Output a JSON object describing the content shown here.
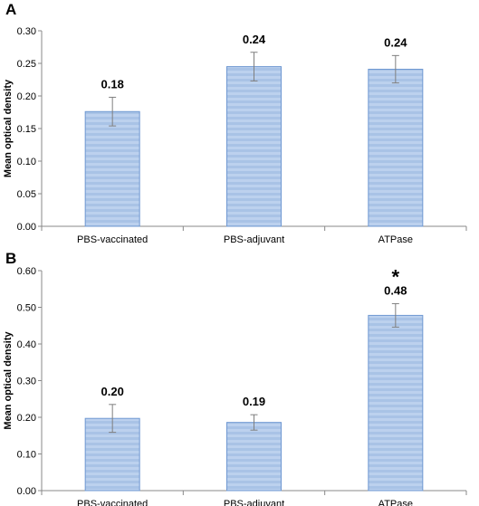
{
  "colors": {
    "bar_fill": "#a9c3e6",
    "bar_stripe": "#8fb0dc",
    "bar_edge": "#6f98d2",
    "axis": "#888888",
    "errorbar": "#7f7f7f"
  },
  "chart_data": [
    {
      "type": "bar",
      "panel": "A",
      "ylabel": "Mean optical density",
      "xlabel": "",
      "categories": [
        "PBS-vaccinated",
        "PBS-adjuvant",
        "ATPase"
      ],
      "values": [
        0.176,
        0.245,
        0.241
      ],
      "errors": [
        0.022,
        0.022,
        0.021
      ],
      "data_labels": [
        "0.18",
        "0.24",
        "0.24"
      ],
      "significance": [
        "",
        "",
        ""
      ],
      "ylim": [
        0,
        0.3
      ],
      "yticks": [
        0,
        0.05,
        0.1,
        0.15,
        0.2,
        0.25,
        0.3
      ],
      "ytick_labels": [
        "0.00",
        "0.05",
        "0.10",
        "0.15",
        "0.20",
        "0.25",
        "0.30"
      ],
      "grid": false,
      "legend": "none"
    },
    {
      "type": "bar",
      "panel": "B",
      "ylabel": "Mean optical density",
      "xlabel": "",
      "categories": [
        "PBS-vaccinated",
        "PBS-adjuvant",
        "ATPase"
      ],
      "values": [
        0.197,
        0.186,
        0.478
      ],
      "errors": [
        0.038,
        0.021,
        0.032
      ],
      "data_labels": [
        "0.20",
        "0.19",
        "0.48"
      ],
      "significance": [
        "",
        "",
        "*"
      ],
      "ylim": [
        0,
        0.6
      ],
      "yticks": [
        0,
        0.1,
        0.2,
        0.3,
        0.4,
        0.5,
        0.6
      ],
      "ytick_labels": [
        "0.00",
        "0.10",
        "0.20",
        "0.30",
        "0.40",
        "0.50",
        "0.60"
      ],
      "grid": false,
      "legend": "none"
    }
  ]
}
